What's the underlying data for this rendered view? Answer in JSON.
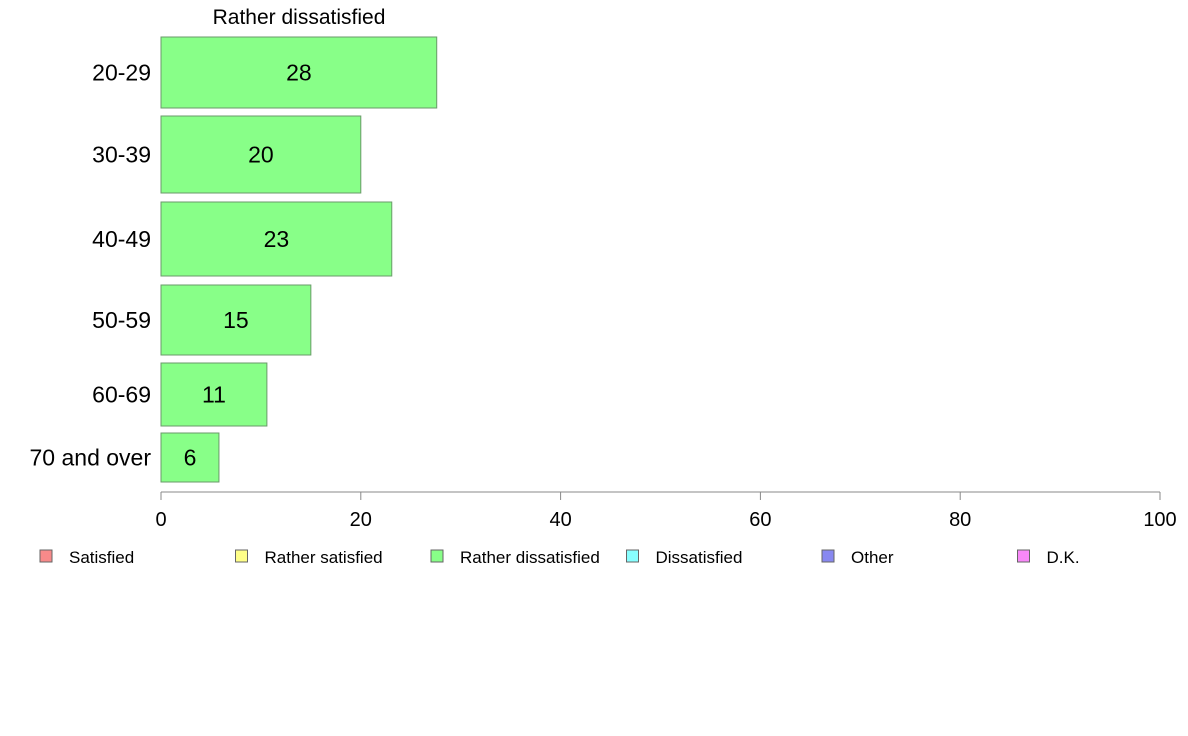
{
  "chart_data": {
    "type": "bar",
    "orientation": "horizontal",
    "title": "Rather dissatisfied",
    "categories": [
      "20-29",
      "30-39",
      "40-49",
      "50-59",
      "60-69",
      "70 and over"
    ],
    "series": [
      {
        "name": "Rather dissatisfied",
        "values": [
          27.6,
          20.0,
          23.1,
          15.0,
          10.6,
          5.8
        ]
      }
    ],
    "data_labels": [
      "28",
      "20",
      "23",
      "15",
      "11",
      "6"
    ],
    "xlim": [
      0,
      100
    ],
    "x_ticks": [
      "0",
      "20",
      "40",
      "60",
      "80",
      "100"
    ],
    "grid": false,
    "legend_position": "bottom",
    "legend": [
      {
        "label": "Satisfied",
        "color": "#f88a8a"
      },
      {
        "label": "Rather satisfied",
        "color": "#ffff88"
      },
      {
        "label": "Rather dissatisfied",
        "color": "#88ff88"
      },
      {
        "label": "Dissatisfied",
        "color": "#88ffff"
      },
      {
        "label": "Other",
        "color": "#8888f0"
      },
      {
        "label": "D.K.",
        "color": "#f888f8"
      }
    ],
    "bar_color": "#88ff88"
  }
}
